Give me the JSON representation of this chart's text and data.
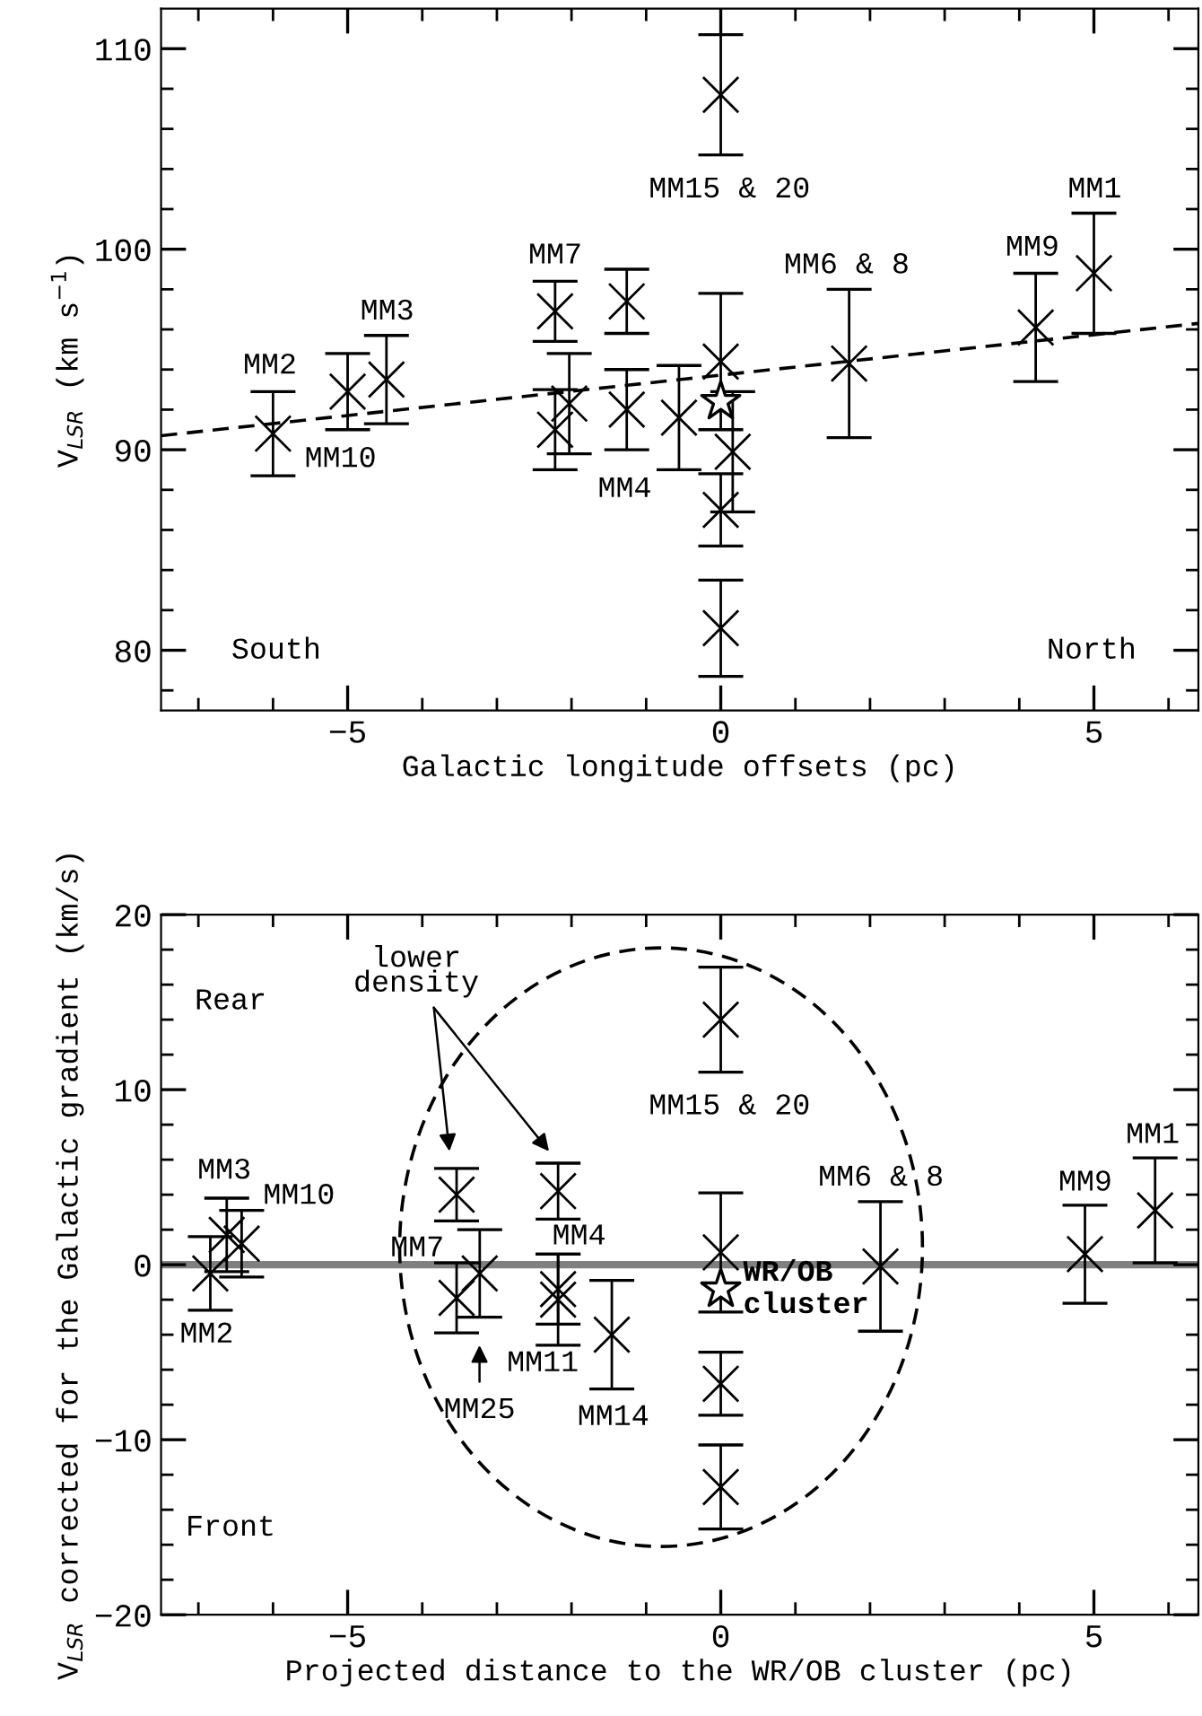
{
  "chart_data": [
    {
      "type": "scatter",
      "xlabel": "Galactic longitude offsets (pc)",
      "ylabel": "V$_{LSR}$ (km s$^{−1}$)",
      "xlim": [
        -7.5,
        6.4
      ],
      "ylim": [
        77,
        112
      ],
      "xticks": [
        {
          "value": -7,
          "label": null
        },
        {
          "value": -6,
          "label": null
        },
        -5,
        {
          "value": -4,
          "label": null
        },
        {
          "value": -3,
          "label": null
        },
        {
          "value": -2,
          "label": null
        },
        {
          "value": -1,
          "label": null
        },
        0,
        {
          "value": 1,
          "label": null
        },
        {
          "value": 2,
          "label": null
        },
        {
          "value": 3,
          "label": null
        },
        {
          "value": 4,
          "label": null
        },
        5,
        {
          "value": 6,
          "label": null
        }
      ],
      "yticks": [
        {
          "value": 78,
          "label": null
        },
        80,
        {
          "value": 82,
          "label": null
        },
        {
          "value": 84,
          "label": null
        },
        {
          "value": 86,
          "label": null
        },
        {
          "value": 88,
          "label": null
        },
        90,
        {
          "value": 92,
          "label": null
        },
        {
          "value": 94,
          "label": null
        },
        {
          "value": 96,
          "label": null
        },
        {
          "value": 98,
          "label": null
        },
        100,
        {
          "value": 102,
          "label": null
        },
        {
          "value": 104,
          "label": null
        },
        {
          "value": 106,
          "label": null
        },
        {
          "value": 108,
          "label": null
        },
        110
      ],
      "series": [
        {
          "marker": "cross",
          "color": "#000000",
          "x": [
            -6.0,
            -5.0,
            -4.48,
            -2.22,
            -2.22,
            -2.03,
            -1.26,
            -1.26,
            -0.56,
            0,
            0.16,
            0,
            0,
            0,
            1.72,
            4.22,
            5.0
          ],
          "values": [
            90.8,
            92.9,
            93.5,
            96.9,
            91.0,
            92.3,
            97.4,
            92.0,
            91.6,
            94.4,
            89.9,
            87.0,
            81.1,
            107.7,
            94.3,
            96.1,
            98.8
          ],
          "errors": [
            2.1,
            1.9,
            2.2,
            1.5,
            2.0,
            2.5,
            1.6,
            2.0,
            2.6,
            3.4,
            3.0,
            1.8,
            2.4,
            3.0,
            3.7,
            2.7,
            3.0
          ]
        },
        {
          "type": "line",
          "line_style": "dashed",
          "color": "#000000",
          "x": [
            -7.5,
            6.4
          ],
          "values": [
            90.7,
            96.3
          ]
        },
        {
          "marker": "star",
          "color": "#000000",
          "x": [
            0
          ],
          "values": [
            92.4
          ]
        }
      ],
      "annotations": [
        "MM2",
        "MM10",
        "MM3",
        "MM7",
        "MM4",
        "MM15 & 20",
        "MM6 & 8",
        "MM9",
        "MM1",
        "South",
        "North"
      ]
    },
    {
      "type": "scatter",
      "xlabel": "Projected distance to the WR/OB cluster (pc)",
      "ylabel": "V$_{LSR}$ corrected for the Galactic gradient (km/s)",
      "xlim": [
        -7.5,
        6.4
      ],
      "ylim": [
        -20,
        20
      ],
      "xticks": [
        {
          "value": -7,
          "label": null
        },
        {
          "value": -6,
          "label": null
        },
        -5,
        {
          "value": -4,
          "label": null
        },
        {
          "value": -3,
          "label": null
        },
        {
          "value": -2,
          "label": null
        },
        {
          "value": -1,
          "label": null
        },
        0,
        {
          "value": 1,
          "label": null
        },
        {
          "value": 2,
          "label": null
        },
        {
          "value": 3,
          "label": null
        },
        {
          "value": 4,
          "label": null
        },
        5,
        {
          "value": 6,
          "label": null
        }
      ],
      "yticks": [
        -20,
        {
          "value": -18,
          "label": null
        },
        {
          "value": -16,
          "label": null
        },
        {
          "value": -14,
          "label": null
        },
        {
          "value": -12,
          "label": null
        },
        -10,
        {
          "value": -8,
          "label": null
        },
        {
          "value": -6,
          "label": null
        },
        {
          "value": -4,
          "label": null
        },
        {
          "value": -2,
          "label": null
        },
        0,
        {
          "value": 2,
          "label": null
        },
        {
          "value": 4,
          "label": null
        },
        {
          "value": 6,
          "label": null
        },
        {
          "value": 8,
          "label": null
        },
        10,
        {
          "value": 12,
          "label": null
        },
        {
          "value": 14,
          "label": null
        },
        {
          "value": 16,
          "label": null
        },
        {
          "value": 18,
          "label": null
        },
        20
      ],
      "ref_lines": [
        {
          "axis": "y",
          "value": 0,
          "color": "#808080"
        }
      ],
      "series": [
        {
          "marker": "cross",
          "color": "#000000",
          "x": [
            -6.84,
            -6.62,
            -6.42,
            -3.54,
            -3.54,
            -3.23,
            -2.18,
            -2.18,
            -2.18,
            -1.46,
            0,
            0,
            0,
            0,
            2.14,
            4.88,
            5.82
          ],
          "values": [
            -0.5,
            1.7,
            1.2,
            4.0,
            -1.9,
            -0.5,
            4.2,
            -1.4,
            -2.0,
            -4.0,
            14.0,
            0.7,
            -6.8,
            -12.7,
            -0.1,
            0.6,
            3.1
          ],
          "errors": [
            2.1,
            2.1,
            1.9,
            1.5,
            2.0,
            2.5,
            1.6,
            2.0,
            2.6,
            3.1,
            3.0,
            3.4,
            1.8,
            2.4,
            3.7,
            2.8,
            3.0
          ]
        },
        {
          "marker": "star",
          "color": "#000000",
          "name": "WR/OB\ncluster",
          "x": [
            0
          ],
          "values": [
            -1.4
          ]
        }
      ],
      "annotations": [
        "lower\ndensity",
        "MM25",
        "Rear",
        "Front",
        "MM3",
        "MM10",
        "MM2",
        "MM7",
        "MM4",
        "MM11",
        "MM14",
        "MM15 & 20",
        "MM6 & 8",
        "MM9",
        "MM1"
      ]
    }
  ]
}
